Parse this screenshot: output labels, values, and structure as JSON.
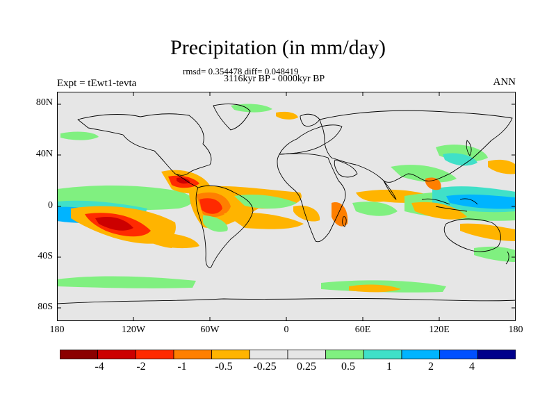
{
  "title": "Precipitation (in mm/day)",
  "stats_line": "rmsd= 0.354478 diff= 0.048419",
  "period_line": "3116kyr BP - 0000kyr BP",
  "expt_label": "Expt = tEwt1-tevta",
  "season_label": "ANN",
  "lat_ticks": [
    "80N",
    "40N",
    "0",
    "40S",
    "80S"
  ],
  "lon_ticks": [
    "180",
    "120W",
    "60W",
    "0",
    "60E",
    "120E",
    "180"
  ],
  "colorbar": {
    "colors": [
      "#8b0000",
      "#cc0000",
      "#ff2a00",
      "#ff7f00",
      "#ffb400",
      "#e6e6e6",
      "#e6e6e6",
      "#80f080",
      "#40e0c8",
      "#00b4ff",
      "#0050ff",
      "#00008b"
    ],
    "labels": [
      "-4",
      "-2",
      "-1",
      "-0.5",
      "-0.25",
      "0.25",
      "0.5",
      "1",
      "2",
      "4"
    ]
  },
  "map_colors": {
    "background": "#e6e6e6",
    "strong_dry": "#cc0000",
    "dry": "#ff2a00",
    "moderate_dry": "#ff7f00",
    "light_dry": "#ffb400",
    "light_wet": "#80f080",
    "moderate_wet": "#40e0c8",
    "wet": "#00b4ff"
  }
}
